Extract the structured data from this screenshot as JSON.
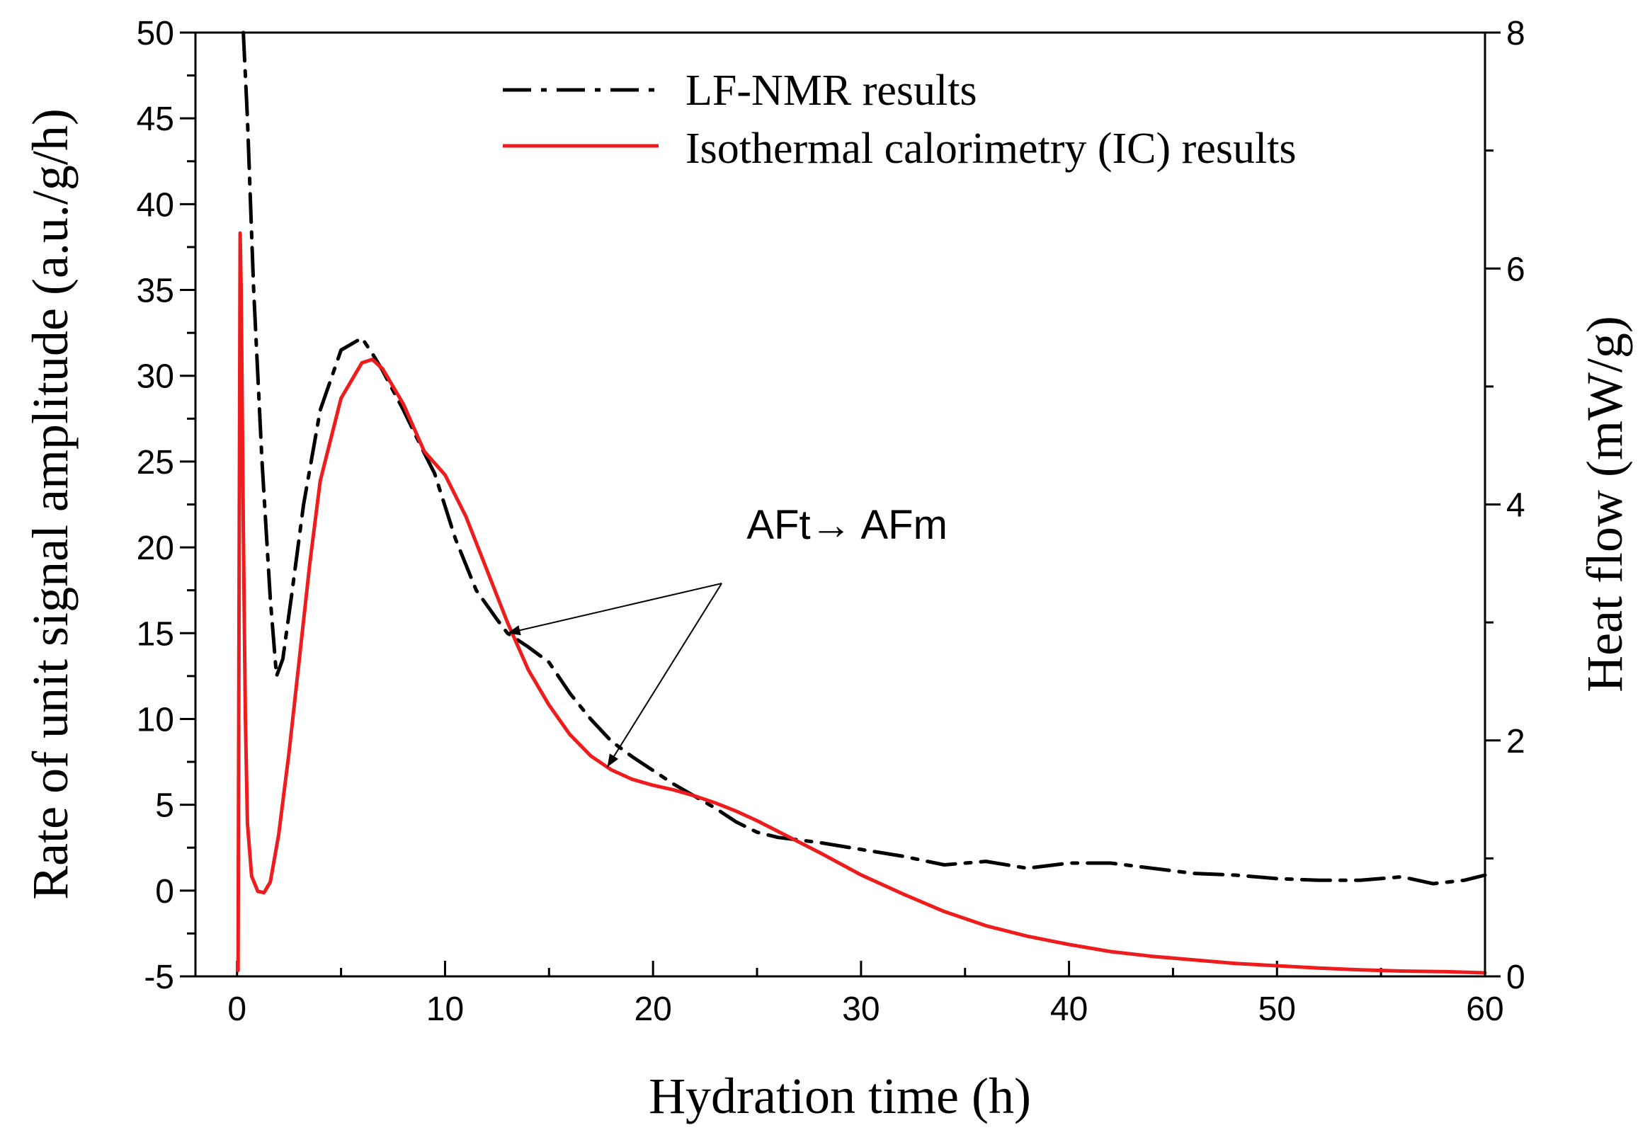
{
  "chart_data": {
    "type": "line",
    "title": "",
    "xlabel": "Hydration time (h)",
    "ylabel_left": "Rate of unit signal amplitude (a.u./g/h)",
    "ylabel_right": "Heat flow (mW/g)",
    "xlim": [
      -2,
      60
    ],
    "ylim_left": [
      -5,
      50
    ],
    "ylim_right": [
      0,
      8
    ],
    "x_ticks": [
      0,
      10,
      20,
      30,
      40,
      50,
      60
    ],
    "y_left_ticks": [
      -5,
      0,
      5,
      10,
      15,
      20,
      25,
      30,
      35,
      40,
      45,
      50
    ],
    "y_right_ticks": [
      0,
      2,
      4,
      6,
      8
    ],
    "legend_position": "top-right",
    "series": [
      {
        "name": "LF-NMR results",
        "axis": "left",
        "color": "#000000",
        "style": "dash-dot",
        "x": [
          0.3,
          0.5,
          0.8,
          1.2,
          1.6,
          1.9,
          2.2,
          2.6,
          3.2,
          4.0,
          5.0,
          6.0,
          6.5,
          7.0,
          8.0,
          9.0,
          9.5,
          10.5,
          11.5,
          12.5,
          13.0,
          14.0,
          15.0,
          16.0,
          17.0,
          18.0,
          19.0,
          20.0,
          21.0,
          22.0,
          23.0,
          24.0,
          25.0,
          26.0,
          28.0,
          30.0,
          32.0,
          34.0,
          36.0,
          38.0,
          40.0,
          42.0,
          44.0,
          46.0,
          48.0,
          50.0,
          52.0,
          54.0,
          56.0,
          57.5,
          59.0,
          60.0
        ],
        "y": [
          50.0,
          45.0,
          35.0,
          25.0,
          17.0,
          12.5,
          13.5,
          17.0,
          22.5,
          28.0,
          31.5,
          32.2,
          31.3,
          30.3,
          28.0,
          25.5,
          24.3,
          20.5,
          17.5,
          15.8,
          15.0,
          14.2,
          13.3,
          11.5,
          10.0,
          8.7,
          7.8,
          7.0,
          6.2,
          5.5,
          4.8,
          4.0,
          3.4,
          3.1,
          2.8,
          2.4,
          2.0,
          1.5,
          1.7,
          1.3,
          1.6,
          1.6,
          1.3,
          1.0,
          0.9,
          0.7,
          0.6,
          0.6,
          0.8,
          0.4,
          0.6,
          0.9
        ]
      },
      {
        "name": "Isothermal calorimetry (IC) results",
        "axis": "right",
        "color": "#ee1c1c",
        "style": "solid",
        "x": [
          0.05,
          0.1,
          0.15,
          0.2,
          0.3,
          0.4,
          0.5,
          0.7,
          1.0,
          1.3,
          1.6,
          2.0,
          2.5,
          3.0,
          3.5,
          4.0,
          5.0,
          6.0,
          6.5,
          7.0,
          8.0,
          9.0,
          9.5,
          10.0,
          11.0,
          12.0,
          13.0,
          14.0,
          15.0,
          16.0,
          17.0,
          18.0,
          19.0,
          20.0,
          21.0,
          22.0,
          23.0,
          24.0,
          25.0,
          26.0,
          28.0,
          30.0,
          32.0,
          34.0,
          36.0,
          38.0,
          40.0,
          42.0,
          44.0,
          46.0,
          48.0,
          50.0,
          52.0,
          54.0,
          56.0,
          58.0,
          60.0
        ],
        "y": [
          0.05,
          3.5,
          6.3,
          5.8,
          3.8,
          2.2,
          1.3,
          0.85,
          0.72,
          0.71,
          0.8,
          1.2,
          1.9,
          2.7,
          3.5,
          4.2,
          4.9,
          5.2,
          5.23,
          5.15,
          4.85,
          4.45,
          4.35,
          4.25,
          3.9,
          3.45,
          3.0,
          2.6,
          2.3,
          2.05,
          1.87,
          1.75,
          1.67,
          1.62,
          1.58,
          1.53,
          1.47,
          1.4,
          1.32,
          1.23,
          1.05,
          0.86,
          0.7,
          0.55,
          0.43,
          0.34,
          0.27,
          0.21,
          0.17,
          0.14,
          0.11,
          0.09,
          0.07,
          0.055,
          0.045,
          0.04,
          0.03
        ]
      }
    ],
    "annotations": [
      {
        "text": "AFt→ AFm",
        "text_at": [
          24.5,
          20.5
        ],
        "arrows_from": [
          23.3,
          17.9
        ],
        "arrows_to": [
          [
            13.0,
            15.0
          ],
          [
            17.8,
            7.2
          ]
        ]
      }
    ]
  }
}
